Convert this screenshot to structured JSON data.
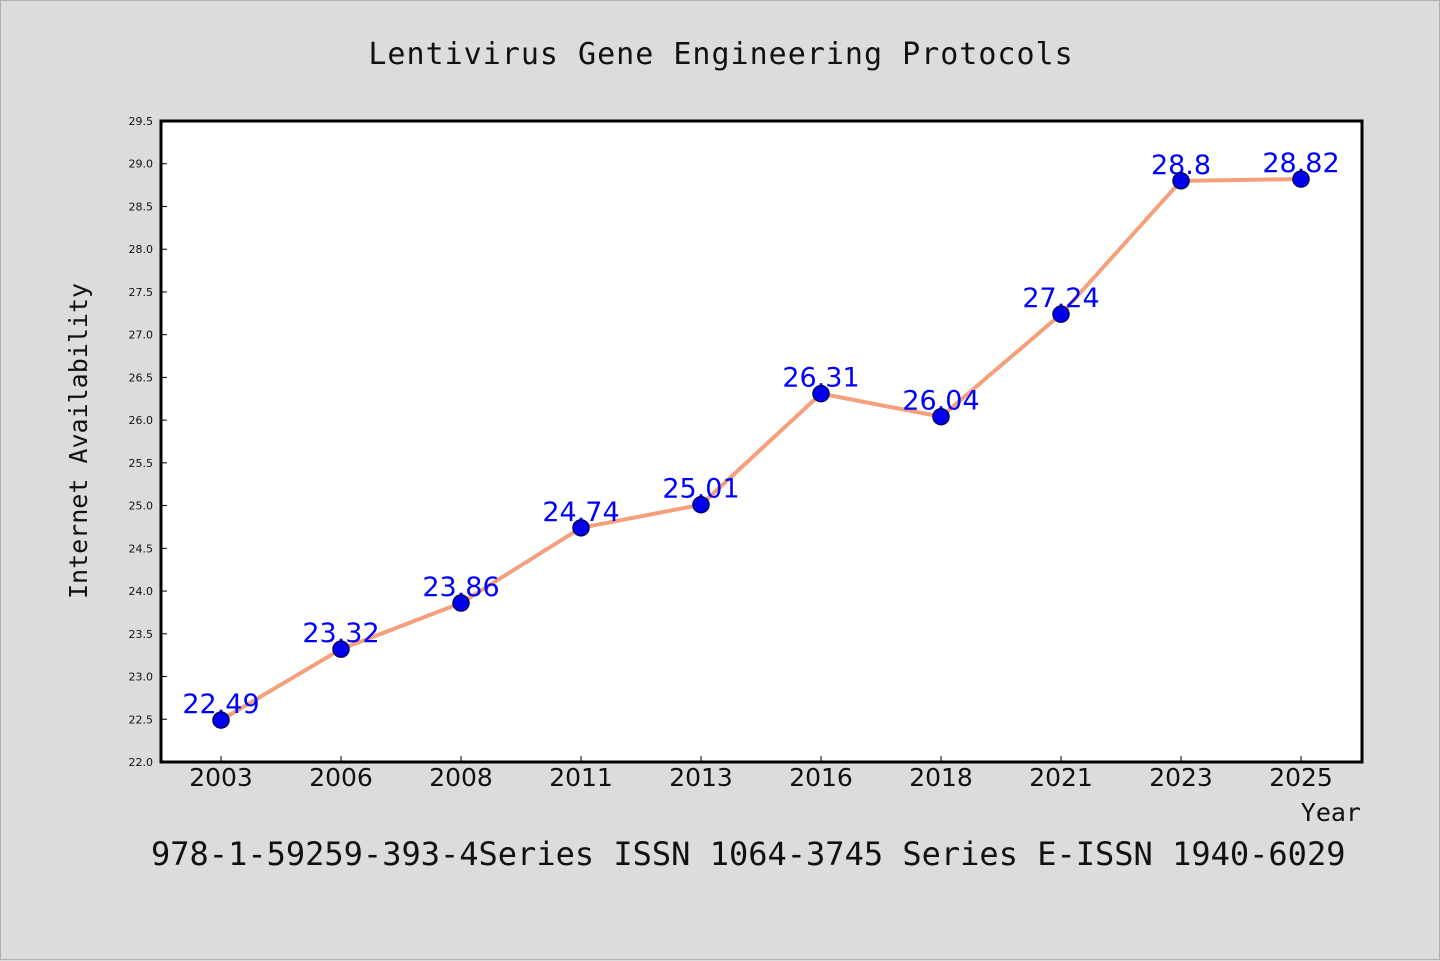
{
  "colors": {
    "background": "#dcdcdc",
    "plot_background": "#ffffff",
    "line": "#f4a07c",
    "marker_fill": "#0000ee",
    "marker_stroke": "#000066",
    "data_label": "#0000ff",
    "axis": "#000000"
  },
  "footer": {
    "text": "978-1-59259-393-4Series ISSN 1064-3745 Series E-ISSN 1940-6029"
  },
  "chart_data": {
    "type": "line",
    "title": "Lentivirus Gene Engineering Protocols",
    "xlabel": "Year",
    "ylabel": "Internet Availability",
    "categories": [
      "2003",
      "2006",
      "2008",
      "2011",
      "2013",
      "2016",
      "2018",
      "2021",
      "2023",
      "2025"
    ],
    "series": [
      {
        "values": [
          22.49,
          23.32,
          23.86,
          24.74,
          25.01,
          26.31,
          26.04,
          27.24,
          28.8,
          28.82
        ],
        "labels": [
          "22.49",
          "23.32",
          "23.86",
          "24.74",
          "25.01",
          "26.31",
          "26.04",
          "27.24",
          "28.8",
          "28.82"
        ]
      }
    ],
    "ylim": [
      22.0,
      29.5
    ],
    "yticks": [
      "22.0",
      "22.5",
      "23.0",
      "23.5",
      "24.0",
      "24.5",
      "25.0",
      "25.5",
      "26.0",
      "26.5",
      "27.0",
      "27.5",
      "28.0",
      "28.5",
      "29.0",
      "29.5"
    ],
    "grid": false,
    "legend": "none",
    "marker": "circle"
  }
}
